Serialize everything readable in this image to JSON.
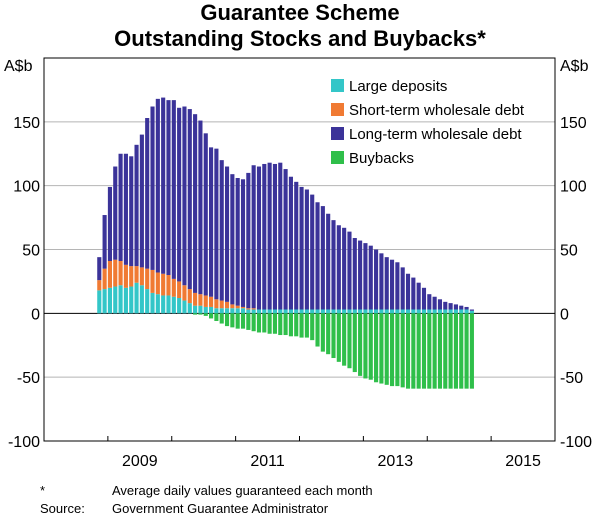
{
  "title": "Guarantee Scheme",
  "subtitle": "Outstanding Stocks and Buybacks*",
  "unit_left": "A$b",
  "unit_right": "A$b",
  "footnote_marker": "*",
  "footnote_text": "Average daily values guaranteed each month",
  "source_label": "Source:",
  "source_text": "Government Guarantee Administrator",
  "colors": {
    "large_deposits": "#33c6c8",
    "short_term": "#f07a33",
    "long_term": "#3b3399",
    "buybacks": "#2fbf4a"
  },
  "chart_data": {
    "type": "bar",
    "stacked": true,
    "ylim": [
      -100,
      200
    ],
    "yticks": [
      -100,
      -50,
      0,
      50,
      100,
      150
    ],
    "xtick_labels": [
      "2009",
      "2011",
      "2013",
      "2015"
    ],
    "x_start": "2008-11",
    "x_end": "2015-09",
    "legend_position": "top-right",
    "series": [
      {
        "name": "Large deposits",
        "color_key": "large_deposits",
        "values": [
          18,
          19,
          20,
          21,
          22,
          20,
          21,
          24,
          22,
          19,
          16,
          15,
          14,
          14,
          13,
          12,
          10,
          8,
          6,
          6,
          5,
          5,
          4,
          4,
          4,
          4,
          4,
          4,
          3,
          3,
          3,
          3,
          3,
          3,
          3,
          3,
          3,
          3,
          3,
          3,
          3,
          3,
          3,
          3,
          3,
          3,
          3,
          3,
          3,
          3,
          3,
          3,
          3,
          3,
          3,
          3,
          3,
          3,
          3,
          3,
          3,
          3,
          3,
          3,
          3,
          3,
          3,
          3,
          3,
          3,
          2
        ]
      },
      {
        "name": "Short-term wholesale debt",
        "color_key": "short_term",
        "values": [
          8,
          16,
          21,
          21,
          19,
          18,
          16,
          13,
          14,
          16,
          18,
          17,
          17,
          16,
          14,
          13,
          12,
          11,
          10,
          9,
          9,
          8,
          7,
          6,
          5,
          3,
          2,
          1,
          1,
          1,
          0,
          0,
          0,
          0,
          0,
          0,
          0,
          0,
          0,
          0,
          0,
          0,
          0,
          0,
          0,
          0,
          0,
          0,
          0,
          0,
          0,
          0,
          0,
          0,
          0,
          0,
          0,
          0,
          0,
          0,
          0,
          0,
          0,
          0,
          0,
          0,
          0,
          0,
          0,
          0,
          0
        ]
      },
      {
        "name": "Long-term wholesale debt",
        "color_key": "long_term",
        "values": [
          18,
          42,
          58,
          73,
          84,
          87,
          86,
          95,
          104,
          118,
          128,
          136,
          138,
          137,
          140,
          136,
          140,
          141,
          140,
          136,
          127,
          117,
          118,
          110,
          106,
          102,
          100,
          100,
          106,
          112,
          112,
          114,
          115,
          114,
          115,
          110,
          104,
          100,
          96,
          94,
          90,
          84,
          81,
          75,
          70,
          66,
          64,
          61,
          56,
          54,
          52,
          50,
          47,
          44,
          41,
          39,
          37,
          33,
          28,
          25,
          21,
          17,
          12,
          10,
          8,
          6,
          5,
          4,
          3,
          2,
          1
        ]
      },
      {
        "name": "Buybacks",
        "color_key": "buybacks",
        "values": [
          0,
          0,
          0,
          0,
          0,
          0,
          0,
          0,
          0,
          0,
          0,
          0,
          0,
          0,
          0,
          0,
          0,
          0,
          -1,
          -1,
          -2,
          -4,
          -6,
          -8,
          -10,
          -11,
          -12,
          -12,
          -13,
          -14,
          -15,
          -15,
          -16,
          -16,
          -17,
          -17,
          -18,
          -18,
          -19,
          -19,
          -21,
          -26,
          -30,
          -32,
          -35,
          -38,
          -41,
          -43,
          -46,
          -49,
          -51,
          -52,
          -54,
          -55,
          -56,
          -57,
          -57,
          -58,
          -59,
          -59,
          -59,
          -59,
          -59,
          -59,
          -59,
          -59,
          -59,
          -59,
          -59,
          -59,
          -59
        ]
      }
    ]
  }
}
